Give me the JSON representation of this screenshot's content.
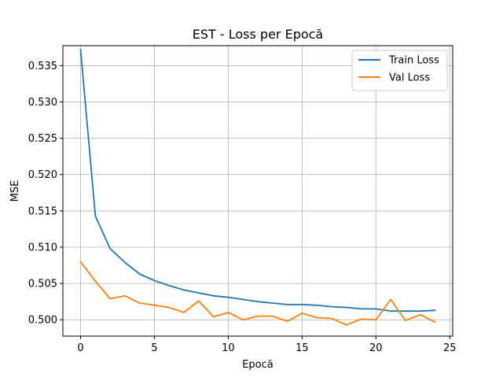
{
  "chart_data": {
    "type": "line",
    "title": "EST - Loss per Epocă",
    "xlabel": "Epocă",
    "ylabel": "MSE",
    "xlim": [
      -1.2,
      25.2
    ],
    "ylim": [
      0.49775,
      0.53775
    ],
    "xticks": [
      0,
      5,
      10,
      15,
      20,
      25
    ],
    "yticks": [
      0.5,
      0.505,
      0.51,
      0.515,
      0.52,
      0.525,
      0.53,
      0.535
    ],
    "xtick_labels": [
      "0",
      "5",
      "10",
      "15",
      "20",
      "25"
    ],
    "ytick_labels": [
      "0.500",
      "0.505",
      "0.510",
      "0.515",
      "0.520",
      "0.525",
      "0.530",
      "0.535"
    ],
    "grid": true,
    "legend_position": "top-right",
    "x": [
      0,
      1,
      2,
      3,
      4,
      5,
      6,
      7,
      8,
      9,
      10,
      11,
      12,
      13,
      14,
      15,
      16,
      17,
      18,
      19,
      20,
      21,
      22,
      23,
      24
    ],
    "series": [
      {
        "name": "Train Loss",
        "color": "#1f77b4",
        "values": [
          0.5372,
          0.5143,
          0.5098,
          0.5079,
          0.5063,
          0.5054,
          0.5047,
          0.5041,
          0.5037,
          0.5033,
          0.5031,
          0.5028,
          0.5025,
          0.5023,
          0.5021,
          0.5021,
          0.502,
          0.5018,
          0.5017,
          0.5015,
          0.5015,
          0.5012,
          0.5012,
          0.5012,
          0.5013
        ]
      },
      {
        "name": "Val Loss",
        "color": "#ff7f0e",
        "values": [
          0.508,
          0.5053,
          0.5029,
          0.5033,
          0.5023,
          0.502,
          0.5017,
          0.501,
          0.5026,
          0.5004,
          0.501,
          0.5,
          0.5005,
          0.5005,
          0.4998,
          0.5009,
          0.5003,
          0.5002,
          0.4993,
          0.5001,
          0.5,
          0.5028,
          0.4999,
          0.5007,
          0.4997
        ]
      }
    ]
  }
}
